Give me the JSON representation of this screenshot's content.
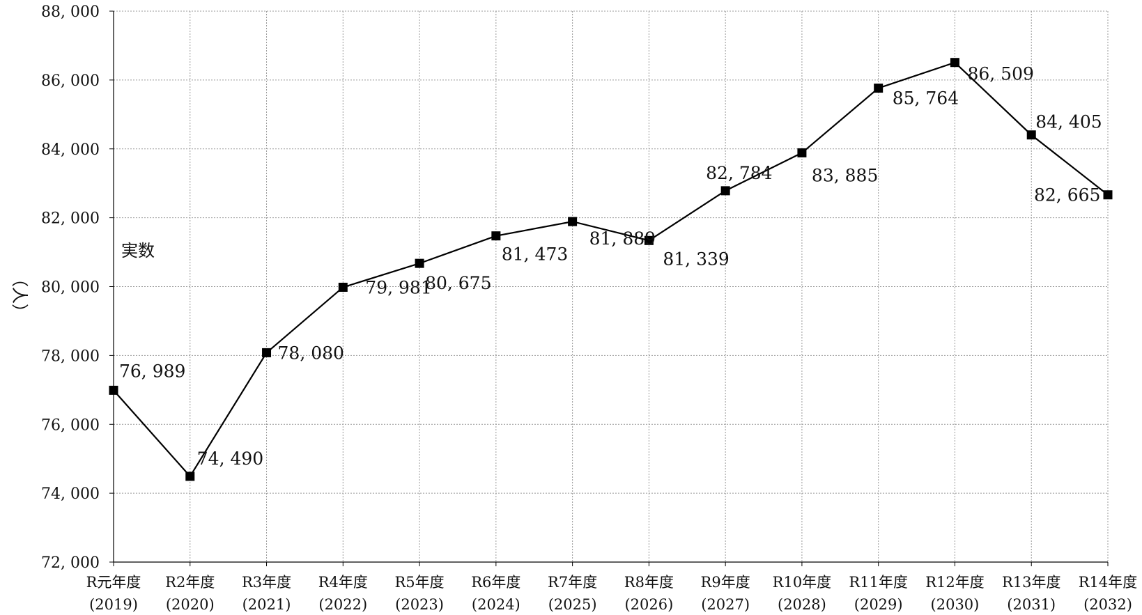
{
  "chart_data": {
    "type": "line",
    "title": "",
    "ylabel": "（人）",
    "annotation": "実数",
    "categories": [
      [
        "R元年度",
        "(2019)"
      ],
      [
        "R2年度",
        "(2020)"
      ],
      [
        "R3年度",
        "(2021)"
      ],
      [
        "R4年度",
        "(2022)"
      ],
      [
        "R5年度",
        "(2023)"
      ],
      [
        "R6年度",
        "(2024)"
      ],
      [
        "R7年度",
        "(2025)"
      ],
      [
        "R8年度",
        "(2026)"
      ],
      [
        "R9年度",
        "(2027)"
      ],
      [
        "R10年度",
        "(2028)"
      ],
      [
        "R11年度",
        "(2029)"
      ],
      [
        "R12年度",
        "(2030)"
      ],
      [
        "R13年度",
        "(2031)"
      ],
      [
        "R14年度",
        "(2032)"
      ]
    ],
    "series": [
      {
        "values": [
          76989,
          74490,
          78080,
          79981,
          80675,
          81473,
          81889,
          81339,
          82784,
          83885,
          85764,
          86509,
          84405,
          82665
        ],
        "labels": [
          "76, 989",
          "74, 490",
          "78, 080",
          "79, 981",
          "80, 675",
          "81, 473",
          "81, 889",
          "81, 339",
          "82, 784",
          "83, 885",
          "85, 764",
          "86, 509",
          "84, 405",
          "82, 665"
        ]
      }
    ],
    "ylim": [
      72000,
      88000
    ],
    "yticks": [
      72000,
      74000,
      76000,
      78000,
      80000,
      82000,
      84000,
      86000,
      88000
    ],
    "ytick_labels": [
      "72, 000",
      "74, 000",
      "76, 000",
      "78, 000",
      "80, 000",
      "82, 000",
      "84, 000",
      "86, 000",
      "88, 000"
    ],
    "grid": true,
    "colors": {
      "line": "#000000",
      "marker": "#000000",
      "grid": "#999999"
    }
  }
}
